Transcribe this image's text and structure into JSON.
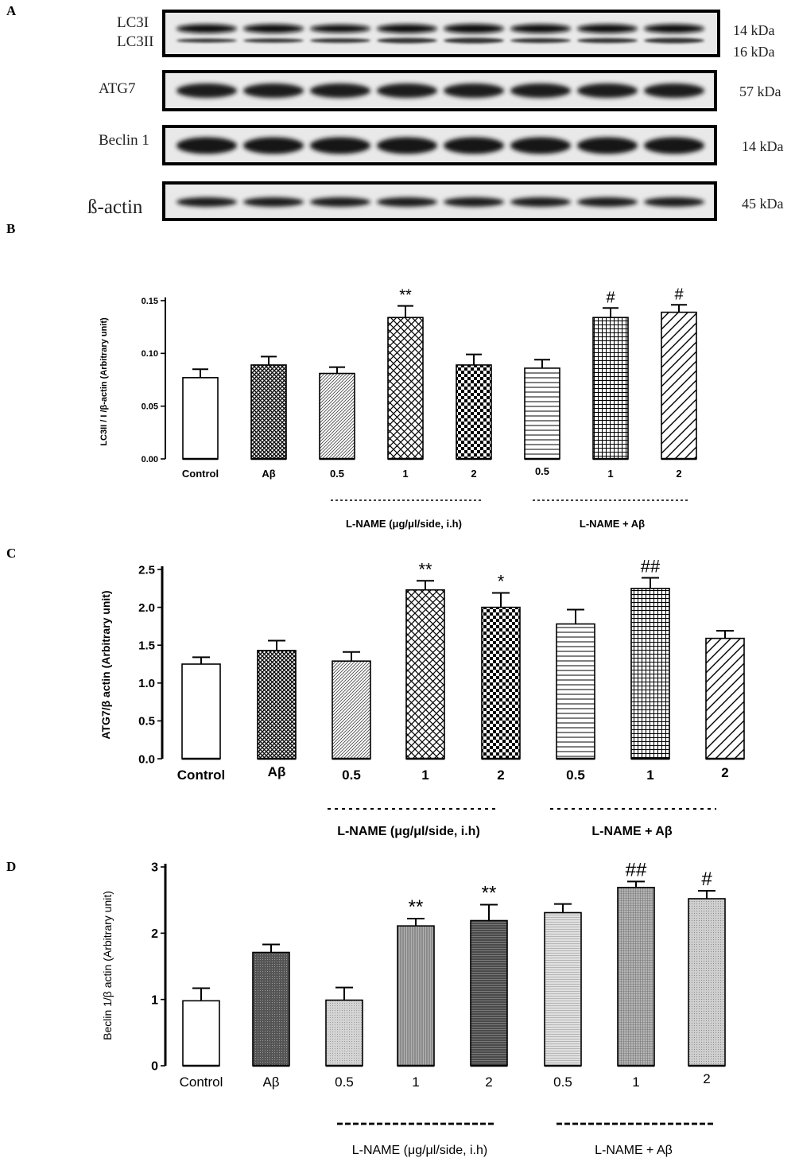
{
  "panels": {
    "A": "A",
    "B": "B",
    "C": "C",
    "D": "D"
  },
  "blots": [
    {
      "labels": [
        "LC3I",
        "LC3II"
      ],
      "kda": [
        "14 kDa",
        "16 kDa"
      ]
    },
    {
      "labels": [
        "ATG7"
      ],
      "kda": [
        "57 kDa"
      ]
    },
    {
      "labels": [
        "Beclin 1"
      ],
      "kda": [
        "14 kDa"
      ]
    },
    {
      "labels": [
        "ß-actin"
      ],
      "kda": [
        "45 kDa"
      ]
    }
  ],
  "chart_data": [
    {
      "type": "bar",
      "ylabel": "LC3II / I /β-actin (Arbitrary unit)",
      "categories": [
        "Control",
        "Aβ",
        "0.5",
        "1",
        "2",
        "0.5",
        "1",
        "2"
      ],
      "values": [
        0.077,
        0.089,
        0.081,
        0.134,
        0.089,
        0.086,
        0.134,
        0.139
      ],
      "errors": [
        0.008,
        0.008,
        0.006,
        0.011,
        0.01,
        0.008,
        0.009,
        0.007
      ],
      "significance": [
        "",
        "",
        "",
        "**",
        "",
        "",
        "#",
        "#"
      ],
      "yticks": [
        "0.00",
        "0.05",
        "0.10",
        "0.15"
      ],
      "ylim": [
        0,
        0.15
      ],
      "group_labels": [
        "L-NAME (μg/μl/side, i.h)",
        "L-NAME + Aβ"
      ],
      "patterns": [
        "none",
        "dense-cross",
        "diag-fine",
        "cross-open",
        "checker",
        "horiz",
        "grid",
        "diag-wide"
      ],
      "fills": [
        "#ffffff",
        "#ffffff",
        "#ffffff",
        "#ffffff",
        "#ffffff",
        "#ffffff",
        "#ffffff",
        "#ffffff"
      ]
    },
    {
      "type": "bar",
      "ylabel": "ATG7/β actin (Arbitrary unit)",
      "categories": [
        "Control",
        "Aβ",
        "0.5",
        "1",
        "2",
        "0.5",
        "1",
        "2"
      ],
      "values": [
        1.25,
        1.43,
        1.29,
        2.23,
        2.0,
        1.78,
        2.25,
        1.59
      ],
      "errors": [
        0.09,
        0.13,
        0.12,
        0.12,
        0.19,
        0.19,
        0.14,
        0.1
      ],
      "significance": [
        "",
        "",
        "",
        "**",
        "*",
        "",
        "##",
        ""
      ],
      "yticks": [
        "0.0",
        "0.5",
        "1.0",
        "1.5",
        "2.0",
        "2.5"
      ],
      "ylim": [
        0,
        2.5
      ],
      "group_labels": [
        "L-NAME (μg/μl/side, i.h)",
        "L-NAME + Aβ"
      ],
      "patterns": [
        "none",
        "dense-cross",
        "diag-fine",
        "cross-open",
        "checker",
        "horiz",
        "grid",
        "diag-wide"
      ],
      "fills": [
        "#ffffff",
        "#ffffff",
        "#ffffff",
        "#ffffff",
        "#ffffff",
        "#ffffff",
        "#ffffff",
        "#ffffff"
      ]
    },
    {
      "type": "bar",
      "ylabel": "Beclin 1/β actin (Arbitrary unit)",
      "categories": [
        "Control",
        "Aβ",
        "0.5",
        "1",
        "2",
        "0.5",
        "1",
        "2"
      ],
      "values": [
        0.98,
        1.71,
        0.99,
        2.11,
        2.19,
        2.31,
        2.69,
        2.52
      ],
      "errors": [
        0.19,
        0.12,
        0.19,
        0.11,
        0.24,
        0.13,
        0.09,
        0.12
      ],
      "significance": [
        "",
        "",
        "",
        "**",
        "**",
        "",
        "##",
        "#"
      ],
      "yticks": [
        "0",
        "1",
        "2",
        "3"
      ],
      "ylim": [
        0,
        3
      ],
      "group_labels": [
        "L-NAME (μg/μl/side, i.h)",
        "L-NAME + Aβ"
      ],
      "patterns": [
        "none",
        "dark",
        "light-dot",
        "mid",
        "dark2",
        "horiz-light",
        "grid-mid",
        "light-dot2"
      ],
      "fills": [
        "#ffffff",
        "#6e6e6e",
        "#d2d2d2",
        "#9a9a9a",
        "#7e7e7e",
        "#d6d6d6",
        "#a8a8a8",
        "#cfcfcf"
      ]
    }
  ]
}
